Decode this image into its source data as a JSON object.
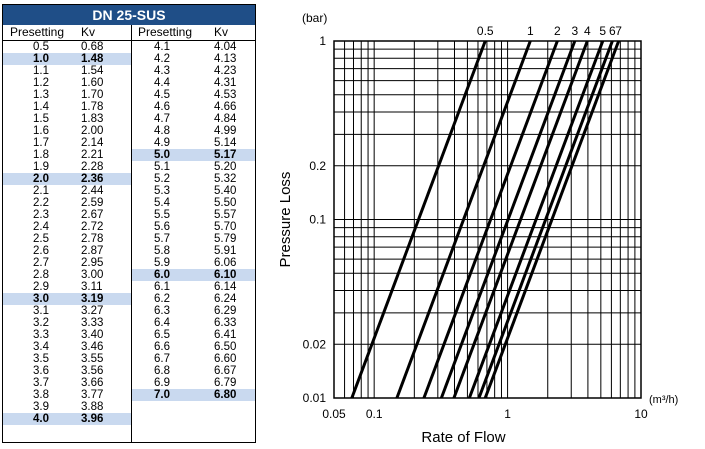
{
  "table": {
    "title": "DN 25-SUS",
    "col_presetting": "Presetting",
    "col_kv": "Kv",
    "left": [
      {
        "p": "0.5",
        "kv": "0.68",
        "hl": false
      },
      {
        "p": "1.0",
        "kv": "1.48",
        "hl": true
      },
      {
        "p": "1.1",
        "kv": "1.54",
        "hl": false
      },
      {
        "p": "1.2",
        "kv": "1.60",
        "hl": false
      },
      {
        "p": "1.3",
        "kv": "1.70",
        "hl": false
      },
      {
        "p": "1.4",
        "kv": "1.78",
        "hl": false
      },
      {
        "p": "1.5",
        "kv": "1.83",
        "hl": false
      },
      {
        "p": "1.6",
        "kv": "2.00",
        "hl": false
      },
      {
        "p": "1.7",
        "kv": "2.14",
        "hl": false
      },
      {
        "p": "1.8",
        "kv": "2.21",
        "hl": false
      },
      {
        "p": "1.9",
        "kv": "2.28",
        "hl": false
      },
      {
        "p": "2.0",
        "kv": "2.36",
        "hl": true
      },
      {
        "p": "2.1",
        "kv": "2.44",
        "hl": false
      },
      {
        "p": "2.2",
        "kv": "2.59",
        "hl": false
      },
      {
        "p": "2.3",
        "kv": "2.67",
        "hl": false
      },
      {
        "p": "2.4",
        "kv": "2.72",
        "hl": false
      },
      {
        "p": "2.5",
        "kv": "2.78",
        "hl": false
      },
      {
        "p": "2.6",
        "kv": "2.87",
        "hl": false
      },
      {
        "p": "2.7",
        "kv": "2.95",
        "hl": false
      },
      {
        "p": "2.8",
        "kv": "3.00",
        "hl": false
      },
      {
        "p": "2.9",
        "kv": "3.11",
        "hl": false
      },
      {
        "p": "3.0",
        "kv": "3.19",
        "hl": true
      },
      {
        "p": "3.1",
        "kv": "3.27",
        "hl": false
      },
      {
        "p": "3.2",
        "kv": "3.33",
        "hl": false
      },
      {
        "p": "3.3",
        "kv": "3.40",
        "hl": false
      },
      {
        "p": "3.4",
        "kv": "3.46",
        "hl": false
      },
      {
        "p": "3.5",
        "kv": "3.55",
        "hl": false
      },
      {
        "p": "3.6",
        "kv": "3.56",
        "hl": false
      },
      {
        "p": "3.7",
        "kv": "3.66",
        "hl": false
      },
      {
        "p": "3.8",
        "kv": "3.77",
        "hl": false
      },
      {
        "p": "3.9",
        "kv": "3.88",
        "hl": false
      },
      {
        "p": "4.0",
        "kv": "3.96",
        "hl": true
      }
    ],
    "right": [
      {
        "p": "4.1",
        "kv": "4.04",
        "hl": false
      },
      {
        "p": "4.2",
        "kv": "4.13",
        "hl": false
      },
      {
        "p": "4.3",
        "kv": "4.23",
        "hl": false
      },
      {
        "p": "4.4",
        "kv": "4.31",
        "hl": false
      },
      {
        "p": "4.5",
        "kv": "4.53",
        "hl": false
      },
      {
        "p": "4.6",
        "kv": "4.66",
        "hl": false
      },
      {
        "p": "4.7",
        "kv": "4.84",
        "hl": false
      },
      {
        "p": "4.8",
        "kv": "4.99",
        "hl": false
      },
      {
        "p": "4.9",
        "kv": "5.14",
        "hl": false
      },
      {
        "p": "5.0",
        "kv": "5.17",
        "hl": true
      },
      {
        "p": "5.1",
        "kv": "5.20",
        "hl": false
      },
      {
        "p": "5.2",
        "kv": "5.32",
        "hl": false
      },
      {
        "p": "5.3",
        "kv": "5.40",
        "hl": false
      },
      {
        "p": "5.4",
        "kv": "5.50",
        "hl": false
      },
      {
        "p": "5.5",
        "kv": "5.57",
        "hl": false
      },
      {
        "p": "5.6",
        "kv": "5.70",
        "hl": false
      },
      {
        "p": "5.7",
        "kv": "5.79",
        "hl": false
      },
      {
        "p": "5.8",
        "kv": "5.91",
        "hl": false
      },
      {
        "p": "5.9",
        "kv": "6.06",
        "hl": false
      },
      {
        "p": "6.0",
        "kv": "6.10",
        "hl": true
      },
      {
        "p": "6.1",
        "kv": "6.14",
        "hl": false
      },
      {
        "p": "6.2",
        "kv": "6.24",
        "hl": false
      },
      {
        "p": "6.3",
        "kv": "6.29",
        "hl": false
      },
      {
        "p": "6.4",
        "kv": "6.33",
        "hl": false
      },
      {
        "p": "6.5",
        "kv": "6.41",
        "hl": false
      },
      {
        "p": "6.6",
        "kv": "6.50",
        "hl": false
      },
      {
        "p": "6.7",
        "kv": "6.60",
        "hl": false
      },
      {
        "p": "6.8",
        "kv": "6.67",
        "hl": false
      },
      {
        "p": "6.9",
        "kv": "6.79",
        "hl": false
      },
      {
        "p": "7.0",
        "kv": "6.80",
        "hl": true
      }
    ]
  },
  "colors": {
    "header_bg": "#1f4e87",
    "highlight_row": "#c9d9ef"
  },
  "chart_data": {
    "type": "line",
    "x_scale": "log",
    "y_scale": "log",
    "xlim": [
      0.05,
      10
    ],
    "ylim": [
      0.01,
      1
    ],
    "xlabel": "Rate of Flow",
    "ylabel": "Pressure Loss",
    "x_unit": "(m³/h)",
    "y_unit": "(bar)",
    "x_ticks": [
      {
        "v": 0.05,
        "label": "0.05"
      },
      {
        "v": 0.1,
        "label": "0.1"
      },
      {
        "v": 1,
        "label": "1"
      },
      {
        "v": 10,
        "label": "10"
      }
    ],
    "y_ticks": [
      {
        "v": 0.01,
        "label": "0.01"
      },
      {
        "v": 0.02,
        "label": "0.02"
      },
      {
        "v": 0.1,
        "label": "0.1"
      },
      {
        "v": 0.2,
        "label": "0.2"
      },
      {
        "v": 1,
        "label": "1"
      }
    ],
    "grid": true,
    "series": [
      {
        "label": "0.5",
        "kv": 0.68
      },
      {
        "label": "1",
        "kv": 1.48
      },
      {
        "label": "2",
        "kv": 2.36
      },
      {
        "label": "3",
        "kv": 3.19
      },
      {
        "label": "4",
        "kv": 3.96
      },
      {
        "label": "5",
        "kv": 5.17
      },
      {
        "label": "6",
        "kv": 6.1
      },
      {
        "label": "7",
        "kv": 6.8
      }
    ]
  }
}
